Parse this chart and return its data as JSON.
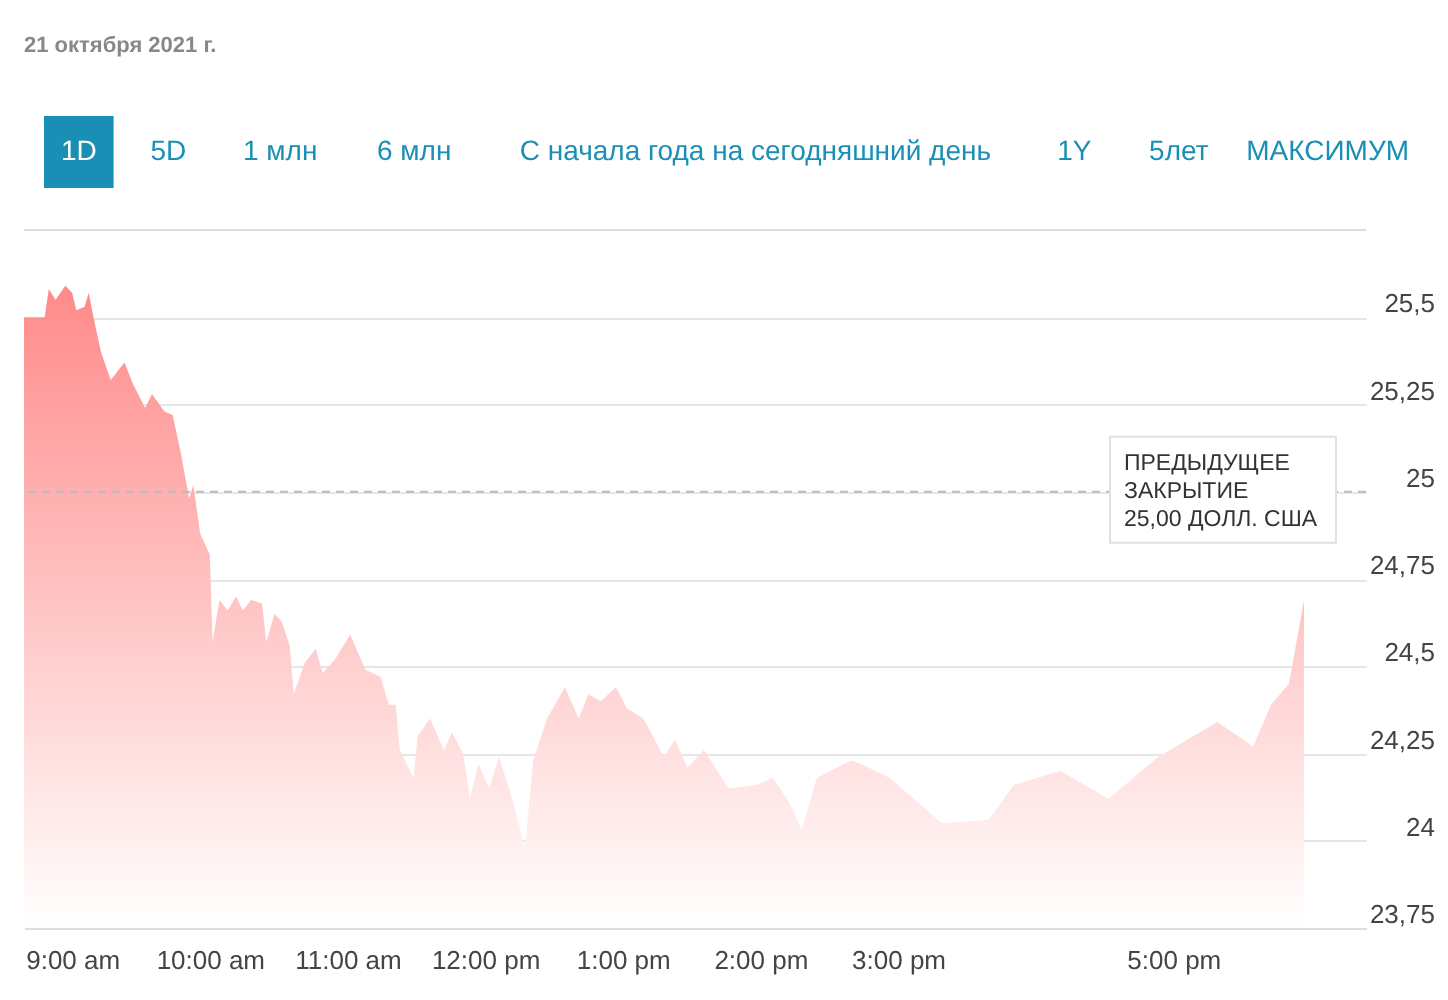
{
  "chart_data": {
    "type": "area",
    "title": "21 октября 2021 г.",
    "annotations": [
      "1D",
      "5D",
      "1 млн",
      "6 млн",
      "С начала года на сегодняшний день",
      "1Y",
      "5лет",
      "МАКСИМУМ"
    ],
    "x": [
      8.65,
      8.8,
      8.83,
      8.88,
      8.95,
      9.0,
      9.03,
      9.09,
      9.12,
      9.16,
      9.21,
      9.28,
      9.34,
      9.38,
      9.44,
      9.53,
      9.58,
      9.67,
      9.73,
      9.79,
      9.85,
      9.88,
      9.93,
      10.0,
      10.02,
      10.07,
      10.13,
      10.19,
      10.24,
      10.3,
      10.38,
      10.41,
      10.47,
      10.52,
      10.58,
      10.61,
      10.69,
      10.77,
      10.82,
      10.91,
      11.02,
      11.13,
      11.24,
      11.3,
      11.35,
      11.38,
      11.48,
      11.51,
      11.6,
      11.7,
      11.76,
      11.84,
      11.89,
      11.95,
      12.03,
      12.1,
      12.19,
      12.29,
      12.35,
      12.45,
      12.58,
      12.68,
      12.75,
      12.84,
      12.95,
      13.03,
      13.15,
      13.3,
      13.38,
      13.47,
      13.59,
      13.77,
      13.97,
      14.09,
      14.21,
      14.3,
      14.41,
      14.66,
      14.73,
      14.94,
      15.32,
      15.66,
      15.84,
      16.18,
      16.53,
      16.89,
      17.32,
      17.58,
      17.71,
      17.84,
      17.95
    ],
    "series": [
      {
        "color": "#ff8a8a",
        "values": [
          25.5,
          25.5,
          25.58,
          25.55,
          25.59,
          25.57,
          25.52,
          25.53,
          25.57,
          25.49,
          25.4,
          25.32,
          25.35,
          25.37,
          25.31,
          25.24,
          25.28,
          25.23,
          25.22,
          25.11,
          24.98,
          25.02,
          24.88,
          24.82,
          24.57,
          24.69,
          24.66,
          24.7,
          24.66,
          24.69,
          24.68,
          24.57,
          24.65,
          24.63,
          24.56,
          24.42,
          24.51,
          24.55,
          24.48,
          24.52,
          24.59,
          24.49,
          24.47,
          24.39,
          24.39,
          24.26,
          24.18,
          24.3,
          24.35,
          24.26,
          24.31,
          24.25,
          24.12,
          24.22,
          24.15,
          24.24,
          24.13,
          23.98,
          24.23,
          24.35,
          24.44,
          24.35,
          24.42,
          24.4,
          24.44,
          24.38,
          24.35,
          24.24,
          24.29,
          24.21,
          24.26,
          24.15,
          24.16,
          24.18,
          24.11,
          24.03,
          24.18,
          24.23,
          24.22,
          24.18,
          24.05,
          24.06,
          24.16,
          24.2,
          24.12,
          24.24,
          24.34,
          24.27,
          24.39,
          24.45,
          24.69
        ]
      }
    ],
    "xlim": [
      8.65,
      18.4
    ],
    "xticks": [
      {
        "value": 9,
        "label": "9:00 am"
      },
      {
        "value": 10,
        "label": "10:00 am"
      },
      {
        "value": 11,
        "label": "11:00 am"
      },
      {
        "value": 12,
        "label": "12:00 pm"
      },
      {
        "value": 13,
        "label": "1:00 pm"
      },
      {
        "value": 14,
        "label": "2:00 pm"
      },
      {
        "value": 15,
        "label": "3:00 pm"
      },
      {
        "value": 17,
        "label": "5:00 pm"
      }
    ],
    "ylim": [
      23.75,
      25.75
    ],
    "yticks": [
      {
        "value": 23.75,
        "label": "23,75"
      },
      {
        "value": 24,
        "label": "24"
      },
      {
        "value": 24.25,
        "label": "24,25"
      },
      {
        "value": 24.5,
        "label": "24,5"
      },
      {
        "value": 24.75,
        "label": "24,75"
      },
      {
        "value": 25,
        "label": "25"
      },
      {
        "value": 25.25,
        "label": "25,25"
      },
      {
        "value": 25.5,
        "label": "25,5"
      }
    ],
    "ref_lines": [
      {
        "axis": "y",
        "value": 25,
        "label": "ПРЕДЫДУЩЕЕ\nЗАКРЫТИЕ\n25,00 ДОЛЛ. США",
        "color": "#bbbbbb",
        "line_style": "dashed"
      }
    ],
    "grid": "y"
  }
}
